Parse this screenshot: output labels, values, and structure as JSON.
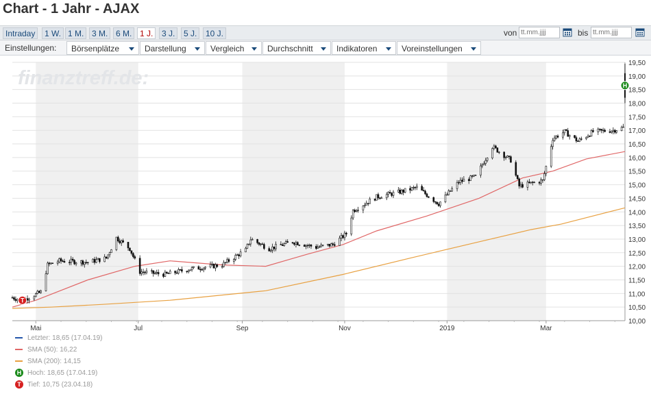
{
  "page": {
    "title": "Chart - 1 Jahr - AJAX"
  },
  "periods": [
    {
      "label": "Intraday",
      "active": false
    },
    {
      "label": "1 W.",
      "active": false
    },
    {
      "label": "1 M.",
      "active": false
    },
    {
      "label": "3 M.",
      "active": false
    },
    {
      "label": "6 M.",
      "active": false
    },
    {
      "label": "1 J.",
      "active": true
    },
    {
      "label": "3 J.",
      "active": false
    },
    {
      "label": "5 J.",
      "active": false
    },
    {
      "label": "10 J.",
      "active": false
    }
  ],
  "date_range": {
    "from_label": "von",
    "from_placeholder": "tt.mm.jjjj",
    "to_label": "bis",
    "to_placeholder": "tt.mm.jjjj"
  },
  "settings": {
    "label": "Einstellungen:",
    "menus": [
      "Börsenplätze",
      "Darstellung",
      "Vergleich",
      "Durchschnitt",
      "Indikatoren",
      "Voreinstellungen"
    ]
  },
  "colors": {
    "accent": "#1a4a7a",
    "active_tab": "#b00000",
    "sma50": "#e06666",
    "sma200": "#e8a040",
    "last": "#2255aa",
    "high_marker": "#1a8a1a",
    "low_marker": "#d62020"
  },
  "chart_data": {
    "type": "candlestick",
    "watermark": "finanztreff.de:",
    "ylim": [
      10.0,
      19.5
    ],
    "y_ticks": [
      "10,00",
      "10,50",
      "11,00",
      "11,50",
      "12,00",
      "12,50",
      "13,00",
      "13,50",
      "14,00",
      "14,50",
      "15,00",
      "15,50",
      "16,00",
      "16,50",
      "17,00",
      "17,50",
      "18,00",
      "18,50",
      "19,00",
      "19,50"
    ],
    "x_ticks": [
      "Mai",
      "Jul",
      "Sep",
      "Nov",
      "2019",
      "Mar"
    ],
    "shaded_months": [
      "Mai–Jun 2018",
      "Sep–Okt 2018",
      "Jan–Feb 2019"
    ],
    "price_keypoints": [
      {
        "date": "2018-04-17",
        "value": 10.85
      },
      {
        "date": "2018-04-23",
        "value": 10.75
      },
      {
        "date": "2018-05-04",
        "value": 11.05
      },
      {
        "date": "2018-05-08",
        "value": 12.05
      },
      {
        "date": "2018-05-15",
        "value": 12.2
      },
      {
        "date": "2018-06-01",
        "value": 12.15
      },
      {
        "date": "2018-06-12",
        "value": 12.3
      },
      {
        "date": "2018-06-18",
        "value": 13.05
      },
      {
        "date": "2018-06-26",
        "value": 12.65
      },
      {
        "date": "2018-07-02",
        "value": 11.8
      },
      {
        "date": "2018-07-17",
        "value": 11.7
      },
      {
        "date": "2018-08-01",
        "value": 11.9
      },
      {
        "date": "2018-08-20",
        "value": 12.05
      },
      {
        "date": "2018-09-03",
        "value": 12.6
      },
      {
        "date": "2018-09-06",
        "value": 13.0
      },
      {
        "date": "2018-09-17",
        "value": 12.65
      },
      {
        "date": "2018-10-01",
        "value": 12.9
      },
      {
        "date": "2018-10-15",
        "value": 12.7
      },
      {
        "date": "2018-10-25",
        "value": 12.8
      },
      {
        "date": "2018-11-02",
        "value": 13.2
      },
      {
        "date": "2018-11-06",
        "value": 14.05
      },
      {
        "date": "2018-11-20",
        "value": 14.55
      },
      {
        "date": "2018-12-05",
        "value": 14.75
      },
      {
        "date": "2018-12-14",
        "value": 14.9
      },
      {
        "date": "2018-12-27",
        "value": 14.3
      },
      {
        "date": "2019-01-08",
        "value": 15.1
      },
      {
        "date": "2019-01-18",
        "value": 15.3
      },
      {
        "date": "2019-01-28",
        "value": 16.4
      },
      {
        "date": "2019-02-08",
        "value": 15.9
      },
      {
        "date": "2019-02-13",
        "value": 14.95
      },
      {
        "date": "2019-02-27",
        "value": 15.15
      },
      {
        "date": "2019-03-05",
        "value": 16.7
      },
      {
        "date": "2019-03-12",
        "value": 16.95
      },
      {
        "date": "2019-03-20",
        "value": 16.6
      },
      {
        "date": "2019-03-29",
        "value": 16.95
      },
      {
        "date": "2019-04-10",
        "value": 17.0
      },
      {
        "date": "2019-04-16",
        "value": 17.1
      },
      {
        "date": "2019-04-17",
        "value": 18.65
      }
    ],
    "sma50_keypoints": [
      {
        "date": "2018-04-17",
        "value": 10.5
      },
      {
        "date": "2018-05-01",
        "value": 10.75
      },
      {
        "date": "2018-06-01",
        "value": 11.5
      },
      {
        "date": "2018-06-29",
        "value": 12.0
      },
      {
        "date": "2018-07-20",
        "value": 12.2
      },
      {
        "date": "2018-08-20",
        "value": 12.05
      },
      {
        "date": "2018-09-15",
        "value": 12.0
      },
      {
        "date": "2018-10-10",
        "value": 12.45
      },
      {
        "date": "2018-10-31",
        "value": 12.8
      },
      {
        "date": "2018-11-20",
        "value": 13.3
      },
      {
        "date": "2018-12-20",
        "value": 13.85
      },
      {
        "date": "2019-01-20",
        "value": 14.5
      },
      {
        "date": "2019-02-15",
        "value": 15.25
      },
      {
        "date": "2019-03-05",
        "value": 15.5
      },
      {
        "date": "2019-03-25",
        "value": 15.95
      },
      {
        "date": "2019-04-17",
        "value": 16.22
      }
    ],
    "sma200_keypoints": [
      {
        "date": "2018-04-17",
        "value": 10.45
      },
      {
        "date": "2018-05-10",
        "value": 10.5
      },
      {
        "date": "2018-06-10",
        "value": 10.6
      },
      {
        "date": "2018-07-20",
        "value": 10.75
      },
      {
        "date": "2018-09-15",
        "value": 11.1
      },
      {
        "date": "2018-10-31",
        "value": 11.7
      },
      {
        "date": "2018-12-10",
        "value": 12.3
      },
      {
        "date": "2019-01-20",
        "value": 12.9
      },
      {
        "date": "2019-02-20",
        "value": 13.35
      },
      {
        "date": "2019-03-10",
        "value": 13.55
      },
      {
        "date": "2019-04-17",
        "value": 14.15
      }
    ],
    "legend": [
      {
        "type": "line",
        "color_key": "last",
        "text": "Letzter: 18,65 (17.04.19)"
      },
      {
        "type": "line",
        "color_key": "sma50",
        "text": "SMA (50): 16,22"
      },
      {
        "type": "line",
        "color_key": "sma200",
        "text": "SMA (200): 14,15"
      },
      {
        "type": "marker",
        "color_key": "high_marker",
        "symbol": "H",
        "text": "Hoch: 18,65 (17.04.19)"
      },
      {
        "type": "marker",
        "color_key": "low_marker",
        "symbol": "T",
        "text": "Tief: 10,75 (23.04.18)"
      }
    ],
    "high": {
      "date": "2019-04-17",
      "value": 18.65,
      "symbol": "H"
    },
    "low": {
      "date": "2018-04-23",
      "value": 10.75,
      "symbol": "T"
    }
  }
}
